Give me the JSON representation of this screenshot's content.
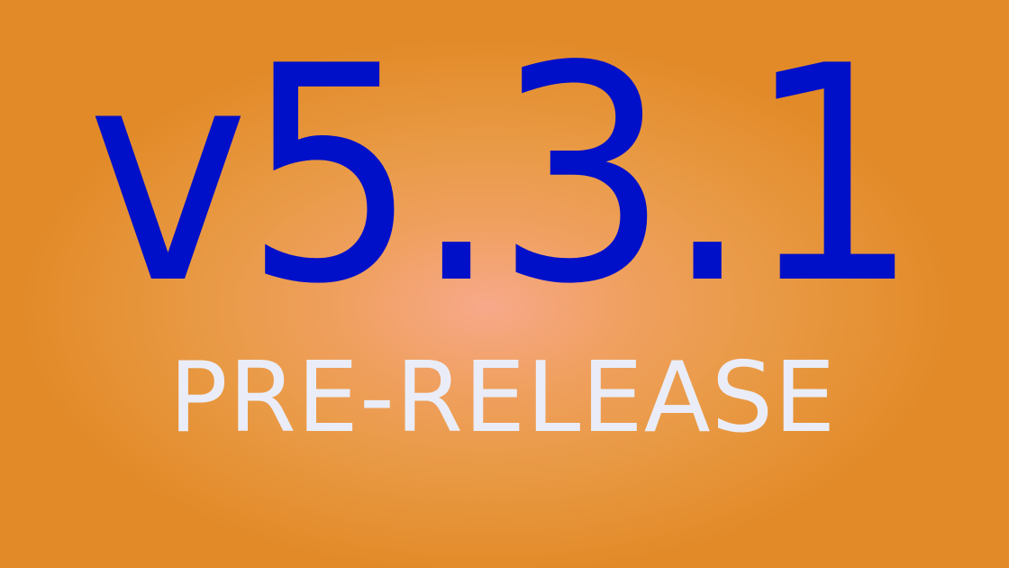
{
  "banner": {
    "version": "v5.3.1",
    "label": "PRE-RELEASE"
  },
  "colors": {
    "background": "#e28a28",
    "background_glow": "#f7a98a",
    "version_text": "#0010c8",
    "label_text": "#eaedf8"
  }
}
